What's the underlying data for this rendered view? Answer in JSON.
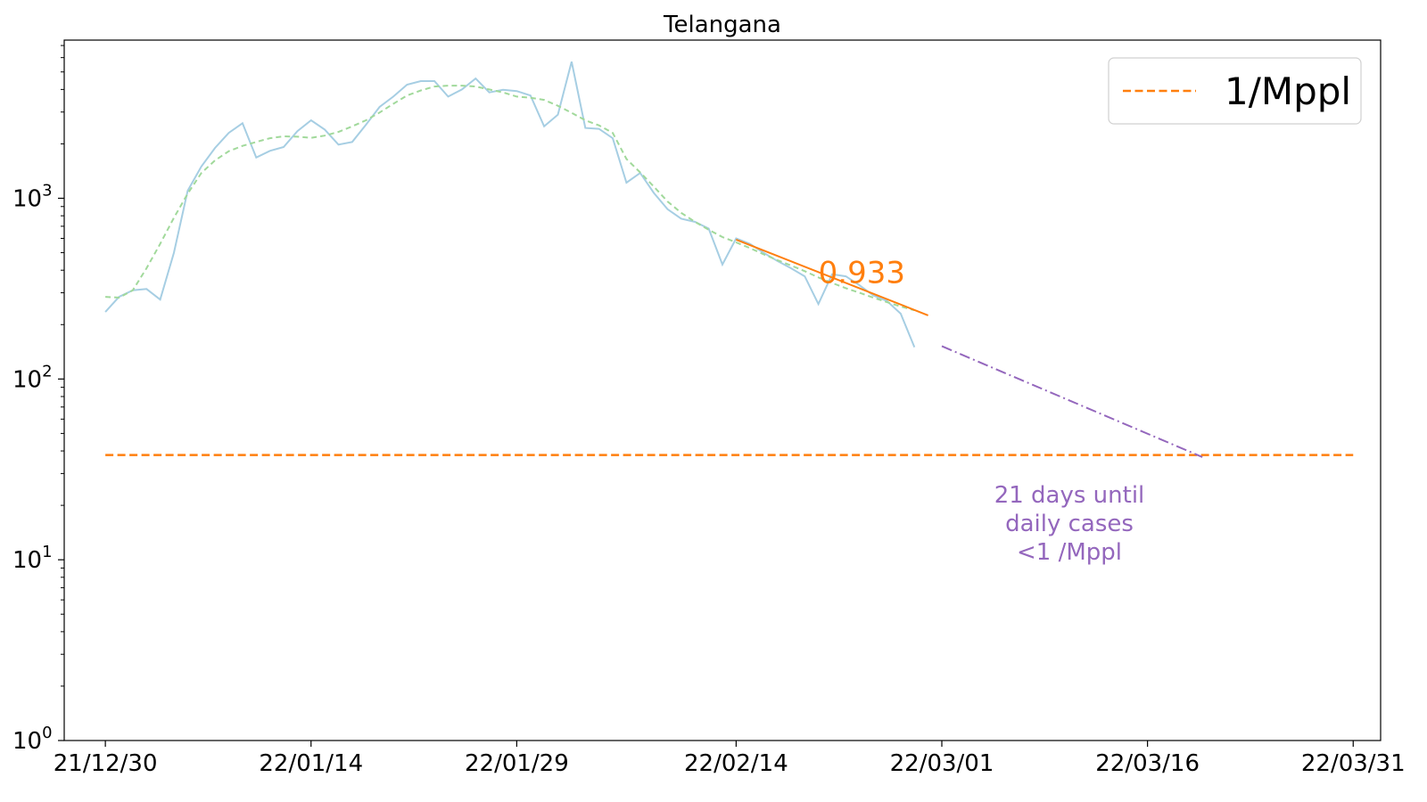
{
  "chart_data": {
    "type": "line",
    "title": "Telangana",
    "xlabel": "",
    "ylabel": "",
    "yscale": "log",
    "ylim": [
      1,
      7500
    ],
    "xlim": [
      "2021-12-27",
      "2022-04-02"
    ],
    "x_ticks": [
      {
        "date": "2021-12-30",
        "label": "21/12/30"
      },
      {
        "date": "2022-01-14",
        "label": "22/01/14"
      },
      {
        "date": "2022-01-29",
        "label": "22/01/29"
      },
      {
        "date": "2022-02-14",
        "label": "22/02/14"
      },
      {
        "date": "2022-03-01",
        "label": "22/03/01"
      },
      {
        "date": "2022-03-16",
        "label": "22/03/16"
      },
      {
        "date": "2022-03-31",
        "label": "22/03/31"
      }
    ],
    "y_ticks": [
      {
        "value": 1,
        "base": "10",
        "exp": "0"
      },
      {
        "value": 10,
        "base": "10",
        "exp": "1"
      },
      {
        "value": 100,
        "base": "10",
        "exp": "2"
      },
      {
        "value": 1000,
        "base": "10",
        "exp": "3"
      }
    ],
    "series": [
      {
        "name": "",
        "style": "solid",
        "color": "#a6cee3",
        "points": [
          [
            "2021-12-30",
            235
          ],
          [
            "2021-12-31",
            285
          ],
          [
            "2022-01-01",
            310
          ],
          [
            "2022-01-02",
            315
          ],
          [
            "2022-01-03",
            275
          ],
          [
            "2022-01-04",
            500
          ],
          [
            "2022-01-05",
            1100
          ],
          [
            "2022-01-06",
            1500
          ],
          [
            "2022-01-07",
            1900
          ],
          [
            "2022-01-08",
            2300
          ],
          [
            "2022-01-09",
            2600
          ],
          [
            "2022-01-10",
            1680
          ],
          [
            "2022-01-11",
            1830
          ],
          [
            "2022-01-12",
            1920
          ],
          [
            "2022-01-13",
            2350
          ],
          [
            "2022-01-14",
            2700
          ],
          [
            "2022-01-15",
            2400
          ],
          [
            "2022-01-16",
            1980
          ],
          [
            "2022-01-17",
            2050
          ],
          [
            "2022-01-18",
            2550
          ],
          [
            "2022-01-19",
            3200
          ],
          [
            "2022-01-20",
            3650
          ],
          [
            "2022-01-21",
            4250
          ],
          [
            "2022-01-22",
            4450
          ],
          [
            "2022-01-23",
            4450
          ],
          [
            "2022-01-24",
            3650
          ],
          [
            "2022-01-25",
            4000
          ],
          [
            "2022-01-26",
            4600
          ],
          [
            "2022-01-27",
            3850
          ],
          [
            "2022-01-28",
            3980
          ],
          [
            "2022-01-29",
            3920
          ],
          [
            "2022-01-30",
            3700
          ],
          [
            "2022-01-31",
            2500
          ],
          [
            "2022-02-01",
            2900
          ],
          [
            "2022-02-02",
            5700
          ],
          [
            "2022-02-03",
            2450
          ],
          [
            "2022-02-04",
            2420
          ],
          [
            "2022-02-05",
            2150
          ],
          [
            "2022-02-06",
            1220
          ],
          [
            "2022-02-07",
            1380
          ],
          [
            "2022-02-08",
            1070
          ],
          [
            "2022-02-09",
            870
          ],
          [
            "2022-02-10",
            770
          ],
          [
            "2022-02-11",
            740
          ],
          [
            "2022-02-12",
            680
          ],
          [
            "2022-02-13",
            430
          ],
          [
            "2022-02-14",
            600
          ],
          [
            "2022-02-15",
            560
          ],
          [
            "2022-02-16",
            500
          ],
          [
            "2022-02-17",
            450
          ],
          [
            "2022-02-18",
            410
          ],
          [
            "2022-02-19",
            370
          ],
          [
            "2022-02-20",
            260
          ],
          [
            "2022-02-21",
            380
          ],
          [
            "2022-02-22",
            370
          ],
          [
            "2022-02-23",
            330
          ],
          [
            "2022-02-24",
            290
          ],
          [
            "2022-02-25",
            270
          ],
          [
            "2022-02-26",
            230
          ],
          [
            "2022-02-27",
            150
          ]
        ]
      },
      {
        "name": "",
        "style": "dashed",
        "color": "#a1d99b",
        "points": [
          [
            "2021-12-30",
            285
          ],
          [
            "2021-12-31",
            282
          ],
          [
            "2022-01-01",
            310
          ],
          [
            "2022-01-02",
            410
          ],
          [
            "2022-01-03",
            560
          ],
          [
            "2022-01-04",
            780
          ],
          [
            "2022-01-05",
            1060
          ],
          [
            "2022-01-06",
            1380
          ],
          [
            "2022-01-07",
            1620
          ],
          [
            "2022-01-08",
            1820
          ],
          [
            "2022-01-09",
            1950
          ],
          [
            "2022-01-10",
            2050
          ],
          [
            "2022-01-11",
            2150
          ],
          [
            "2022-01-12",
            2200
          ],
          [
            "2022-01-13",
            2190
          ],
          [
            "2022-01-14",
            2160
          ],
          [
            "2022-01-15",
            2220
          ],
          [
            "2022-01-16",
            2330
          ],
          [
            "2022-01-17",
            2500
          ],
          [
            "2022-01-18",
            2700
          ],
          [
            "2022-01-19",
            2980
          ],
          [
            "2022-01-20",
            3330
          ],
          [
            "2022-01-21",
            3700
          ],
          [
            "2022-01-22",
            3950
          ],
          [
            "2022-01-23",
            4150
          ],
          [
            "2022-01-24",
            4200
          ],
          [
            "2022-01-25",
            4200
          ],
          [
            "2022-01-26",
            4150
          ],
          [
            "2022-01-27",
            4000
          ],
          [
            "2022-01-28",
            3850
          ],
          [
            "2022-01-29",
            3650
          ],
          [
            "2022-01-30",
            3600
          ],
          [
            "2022-01-31",
            3500
          ],
          [
            "2022-02-01",
            3250
          ],
          [
            "2022-02-02",
            2970
          ],
          [
            "2022-02-03",
            2700
          ],
          [
            "2022-02-04",
            2530
          ],
          [
            "2022-02-05",
            2300
          ],
          [
            "2022-02-06",
            1650
          ],
          [
            "2022-02-07",
            1390
          ],
          [
            "2022-02-08",
            1160
          ],
          [
            "2022-02-09",
            960
          ],
          [
            "2022-02-10",
            830
          ],
          [
            "2022-02-11",
            740
          ],
          [
            "2022-02-12",
            670
          ],
          [
            "2022-02-13",
            610
          ],
          [
            "2022-02-14",
            570
          ],
          [
            "2022-02-15",
            530
          ],
          [
            "2022-02-16",
            490
          ],
          [
            "2022-02-17",
            455
          ],
          [
            "2022-02-18",
            425
          ],
          [
            "2022-02-19",
            395
          ],
          [
            "2022-02-20",
            365
          ],
          [
            "2022-02-21",
            340
          ],
          [
            "2022-02-22",
            318
          ],
          [
            "2022-02-23",
            300
          ],
          [
            "2022-02-24",
            282
          ],
          [
            "2022-02-25",
            266
          ],
          [
            "2022-02-26",
            252
          ],
          [
            "2022-02-27",
            240
          ]
        ]
      }
    ],
    "trend_line": {
      "color": "#ff7f0e",
      "start": [
        "2022-02-14",
        590
      ],
      "end": [
        "2022-02-28",
        225
      ],
      "label": "0.933",
      "label_anchor": [
        "2022-02-20",
        340
      ]
    },
    "projection": {
      "color": "#9467bd",
      "start": [
        "2022-02-29",
        152
      ],
      "end": [
        "2022-03-20",
        37
      ]
    },
    "threshold": {
      "name": "1/Mppl",
      "color": "#ff7f0e",
      "value": 38,
      "x_start": "2021-12-30",
      "x_end": "2022-03-31"
    },
    "annotation": {
      "lines": [
        "21 days until",
        "daily cases",
        "<1 /Mppl"
      ],
      "color": "#9467bd",
      "anchor": [
        "2022-03-09",
        10
      ]
    },
    "legend": {
      "placement": "top-right",
      "entries": [
        {
          "label": "1/Mppl",
          "color": "#ff7f0e",
          "style": "dashed"
        }
      ]
    },
    "grid": false
  }
}
